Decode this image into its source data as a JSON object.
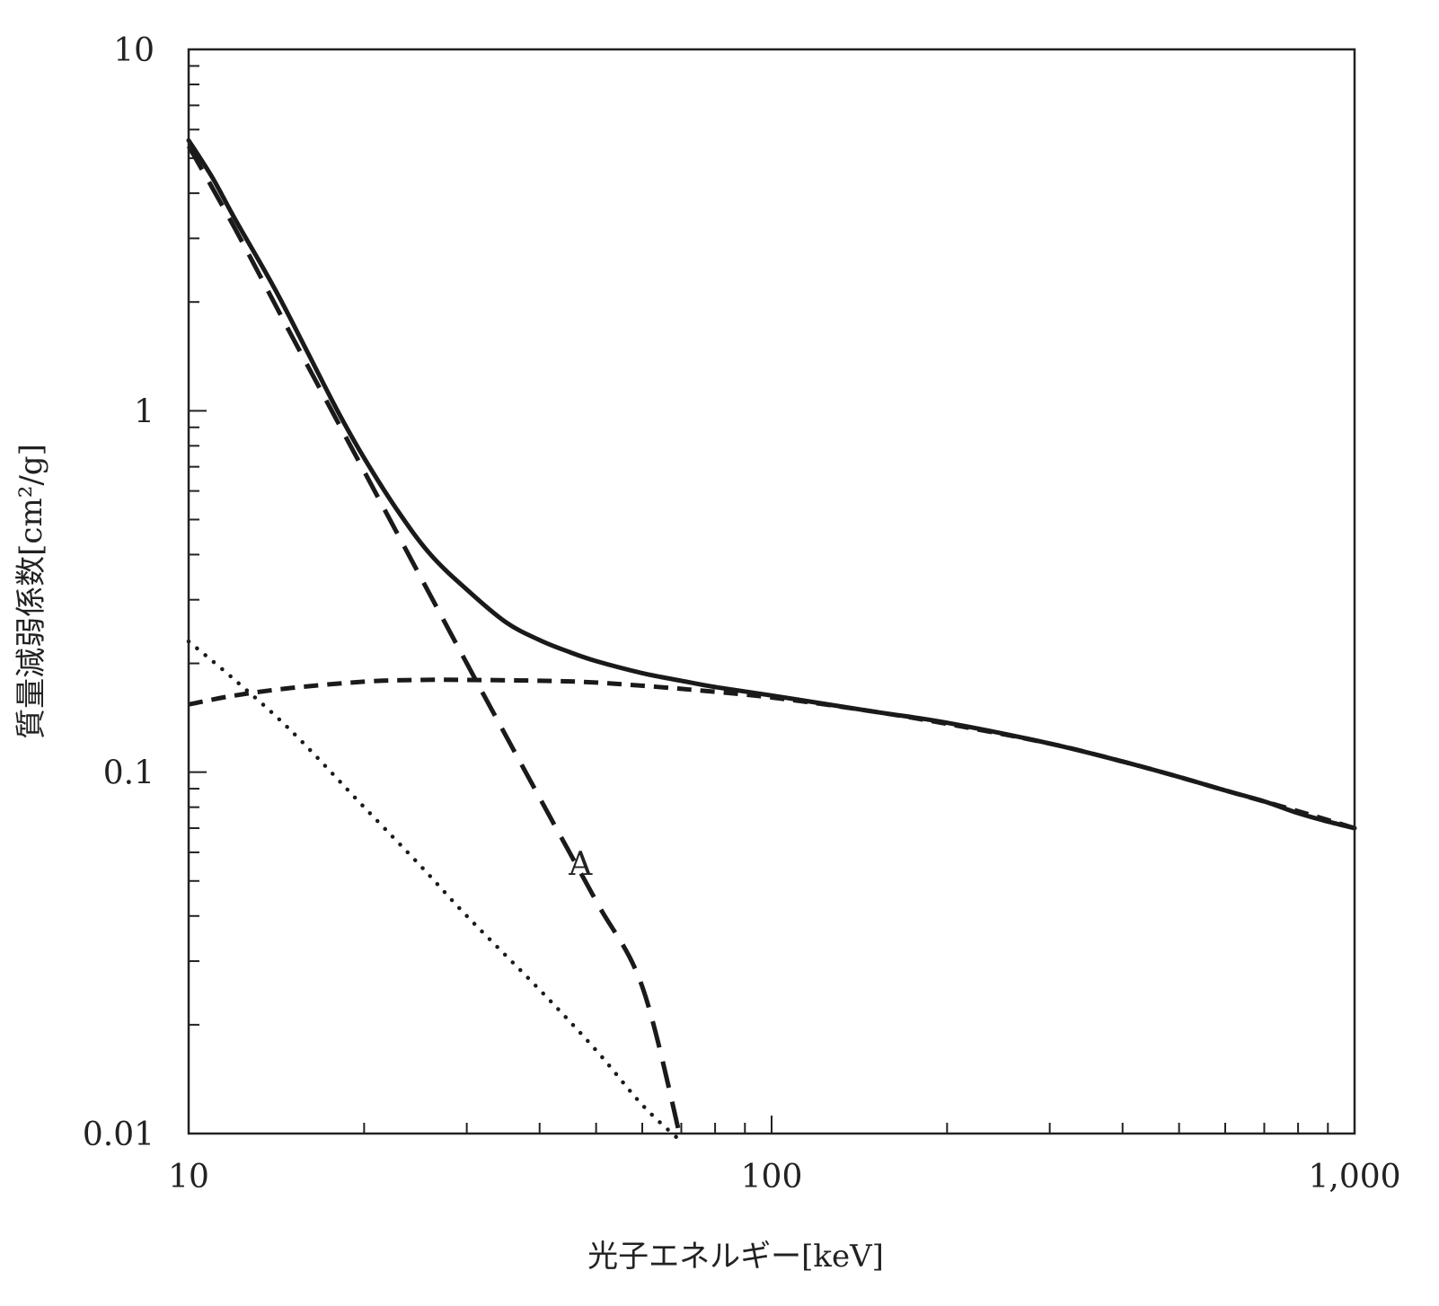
{
  "chart_data": {
    "type": "line",
    "title": "",
    "xlabel": "光子エネルギー[keV]",
    "ylabel": "質量減弱係数[cm²/g]",
    "xscale": "log",
    "yscale": "log",
    "xlim": [
      10,
      1000
    ],
    "ylim": [
      0.01,
      10
    ],
    "xticks": [
      {
        "value": 10,
        "label": "10"
      },
      {
        "value": 100,
        "label": "100"
      },
      {
        "value": 1000,
        "label": "1,000"
      }
    ],
    "yticks": [
      {
        "value": 0.01,
        "label": "0.01"
      },
      {
        "value": 0.1,
        "label": "0.1"
      },
      {
        "value": 1,
        "label": "1"
      },
      {
        "value": 10,
        "label": "10"
      }
    ],
    "grid": false,
    "legend": "none",
    "series": [
      {
        "style": "solid",
        "x": [
          10,
          11,
          12,
          14,
          16,
          18,
          20,
          23,
          26,
          30,
          35,
          40,
          45,
          50,
          60,
          70,
          80,
          100,
          150,
          200,
          300,
          400,
          500,
          600,
          700,
          800,
          900,
          1000
        ],
        "y": [
          5.6,
          4.4,
          3.4,
          2.2,
          1.45,
          1.0,
          0.74,
          0.52,
          0.4,
          0.32,
          0.26,
          0.232,
          0.215,
          0.203,
          0.188,
          0.179,
          0.172,
          0.163,
          0.147,
          0.137,
          0.12,
          0.107,
          0.097,
          0.089,
          0.083,
          0.077,
          0.073,
          0.07
        ]
      },
      {
        "style": "long-dash",
        "label": "A",
        "x": [
          10,
          12,
          15,
          20,
          30,
          40,
          50,
          60,
          70
        ],
        "y": [
          5.4,
          3.2,
          1.62,
          0.68,
          0.2,
          0.085,
          0.044,
          0.0255,
          0.0095
        ]
      },
      {
        "style": "short-dash",
        "x": [
          10,
          12,
          15,
          20,
          25,
          30,
          40,
          50,
          70,
          100,
          150,
          200,
          300,
          400,
          500,
          600,
          800,
          1000
        ],
        "y": [
          0.154,
          0.163,
          0.171,
          0.178,
          0.18,
          0.18,
          0.179,
          0.177,
          0.17,
          0.161,
          0.147,
          0.136,
          0.12,
          0.107,
          0.097,
          0.089,
          0.078,
          0.07
        ]
      },
      {
        "style": "dotted",
        "x": [
          10,
          12,
          15,
          20,
          25,
          30,
          40,
          50,
          60,
          70
        ],
        "y": [
          0.23,
          0.18,
          0.13,
          0.08,
          0.055,
          0.04,
          0.025,
          0.017,
          0.012,
          0.0095
        ]
      }
    ],
    "annotations": [
      {
        "text": "A",
        "x": 47,
        "y": 0.052
      }
    ]
  }
}
